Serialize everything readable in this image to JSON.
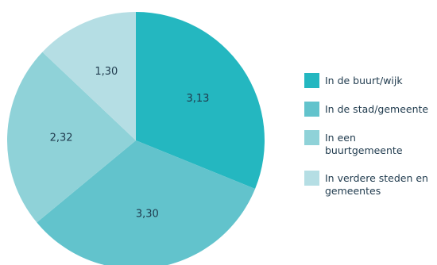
{
  "chart_data": {
    "type": "pie",
    "categories": [
      "In de buurt/wijk",
      "In de stad/gemeente",
      "In een buurtgemeente",
      "In verdere steden en gemeentes"
    ],
    "values": [
      3.13,
      3.3,
      2.32,
      1.3
    ],
    "value_labels": [
      "3,13",
      "3,30",
      "2,32",
      "1,30"
    ],
    "colors": [
      "#24b7c0",
      "#62c3cc",
      "#8fd2d8",
      "#b5dee4"
    ],
    "legend": "right",
    "start": "12 o'clock",
    "direction": "clockwise"
  }
}
